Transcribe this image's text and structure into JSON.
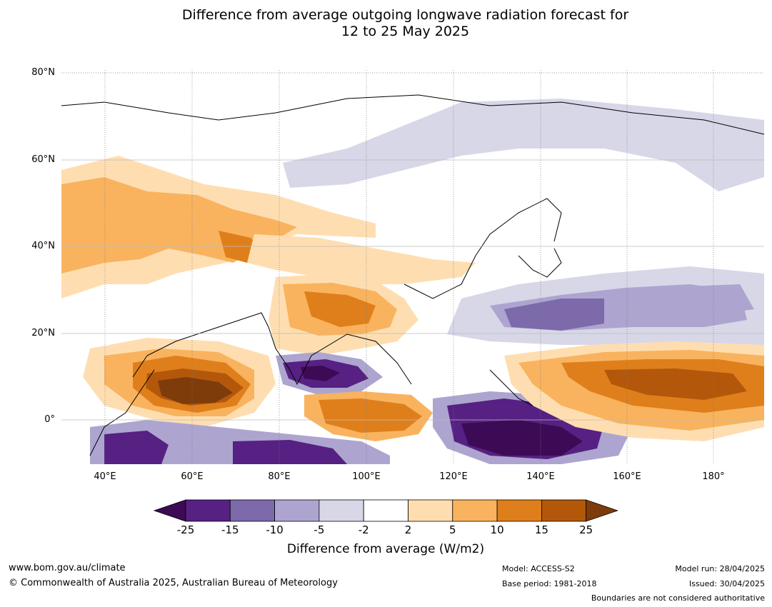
{
  "title": {
    "line1": "Difference from average outgoing longwave radiation forecast for",
    "line2": "12 to 25 May 2025"
  },
  "map": {
    "lat_labels": [
      "80°N",
      "60°N",
      "40°N",
      "20°N",
      "0°"
    ],
    "lon_labels": [
      "40°E",
      "60°E",
      "80°E",
      "100°E",
      "120°E",
      "140°E",
      "160°E",
      "180°"
    ]
  },
  "colorbar": {
    "ticks": [
      "-25",
      "-15",
      "-10",
      "-5",
      "-2",
      "2",
      "5",
      "10",
      "15",
      "25"
    ],
    "colors": [
      "#3d0a56",
      "#562182",
      "#7c6aab",
      "#ada5cf",
      "#d8d7e8",
      "#ffffff",
      "#fedeb1",
      "#f9b35e",
      "#df7f1c",
      "#b3580b",
      "#7e3c0b"
    ],
    "label": "Difference from average (W/m2)"
  },
  "footer": {
    "website": "www.bom.gov.au/climate",
    "copyright": "© Commonwealth of Australia 2025, Australian Bureau of Meteorology",
    "model": "Model: ACCESS-S2",
    "base_period": "Base period: 1981-2018",
    "model_run": "Model run: 28/04/2025",
    "issued": "Issued: 30/04/2025",
    "disclaimer": "Boundaries are not considered authoritative"
  }
}
